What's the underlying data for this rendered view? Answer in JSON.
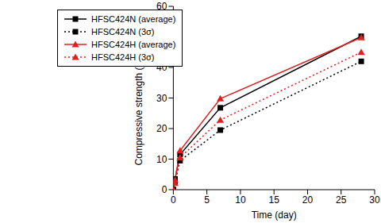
{
  "chart_data": {
    "type": "line",
    "x_label": "Time (day)",
    "y_label": "Compressive strength (N/mm²)",
    "x": [
      0,
      0.25,
      1,
      7,
      28
    ],
    "series": [
      {
        "name": "HFSC424N (average)",
        "color": "#000000",
        "marker": "square",
        "line_style": "solid",
        "values": [
          0,
          3.5,
          11.5,
          26.8,
          50.2
        ]
      },
      {
        "name": "HFSC424N (3σ)",
        "color": "#000000",
        "marker": "square",
        "line_style": "dotted",
        "values": [
          0,
          2.5,
          9.5,
          19.5,
          42
        ]
      },
      {
        "name": "HFSC424H (average)",
        "color": "#e02020",
        "marker": "triangle",
        "line_style": "solid",
        "values": [
          0,
          3.2,
          12.8,
          29.8,
          49.8
        ]
      },
      {
        "name": "HFSC424H (3σ)",
        "color": "#e02020",
        "marker": "triangle",
        "line_style": "dotted",
        "values": [
          0,
          2.2,
          10.5,
          22.8,
          45
        ]
      }
    ],
    "xlim": [
      0,
      30
    ],
    "xticks": [
      0,
      5,
      10,
      15,
      20,
      25,
      30
    ],
    "ylim": [
      0,
      60
    ],
    "yticks": [
      0,
      10,
      20,
      30,
      40,
      50,
      60
    ],
    "grid": false,
    "legend": "upper left"
  }
}
